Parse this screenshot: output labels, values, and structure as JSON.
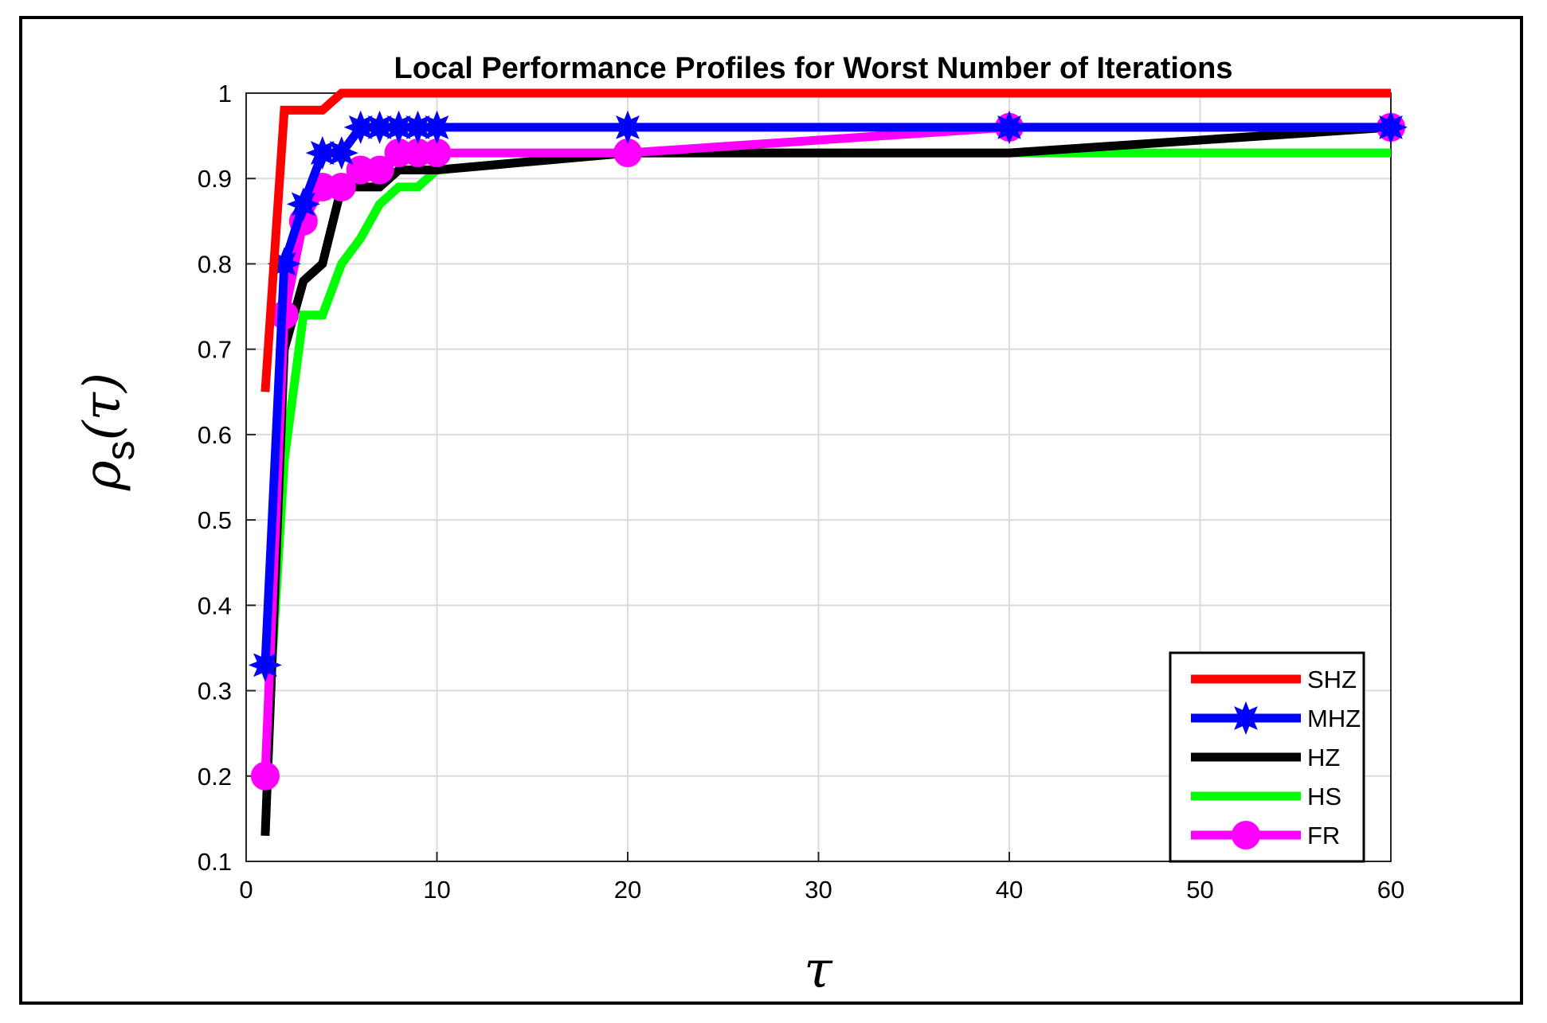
{
  "chart_data": {
    "type": "line",
    "title": "Local Performance Profiles for Worst Number of Iterations",
    "xlabel": "τ",
    "ylabel": "ρs(τ)",
    "ylabel_main": "ρ",
    "ylabel_sub": "s",
    "ylabel_arg": "(τ)",
    "xlim": [
      0,
      60
    ],
    "ylim": [
      0.1,
      1.0
    ],
    "xticks": [
      0,
      10,
      20,
      30,
      40,
      50,
      60
    ],
    "yticks": [
      0.1,
      0.2,
      0.3,
      0.4,
      0.5,
      0.6,
      0.7,
      0.8,
      0.9,
      1
    ],
    "grid": true,
    "legend_position": "bottom-right",
    "series": [
      {
        "name": "SHZ",
        "color": "#ff0000",
        "marker": "none",
        "x": [
          1,
          2,
          3,
          4,
          5,
          60
        ],
        "y": [
          0.65,
          0.98,
          0.98,
          0.98,
          1.0,
          1.0
        ]
      },
      {
        "name": "MHZ",
        "color": "#0000ff",
        "marker": "star",
        "x": [
          1,
          2,
          3,
          4,
          5,
          6,
          7,
          8,
          9,
          10,
          20,
          40,
          60
        ],
        "y": [
          0.33,
          0.8,
          0.87,
          0.93,
          0.93,
          0.96,
          0.96,
          0.96,
          0.96,
          0.96,
          0.96,
          0.96,
          0.96
        ]
      },
      {
        "name": "HZ",
        "color": "#000000",
        "marker": "none",
        "x": [
          1,
          2,
          3,
          4,
          5,
          6,
          7,
          8,
          9,
          10,
          20,
          40,
          60
        ],
        "y": [
          0.13,
          0.7,
          0.78,
          0.8,
          0.89,
          0.89,
          0.89,
          0.91,
          0.91,
          0.91,
          0.93,
          0.93,
          0.96
        ]
      },
      {
        "name": "HS",
        "color": "#00ff00",
        "marker": "none",
        "x": [
          1,
          2,
          3,
          4,
          5,
          6,
          7,
          8,
          9,
          10,
          20,
          40,
          60
        ],
        "y": [
          0.2,
          0.57,
          0.74,
          0.74,
          0.8,
          0.83,
          0.87,
          0.89,
          0.89,
          0.91,
          0.93,
          0.93,
          0.93
        ]
      },
      {
        "name": "FR",
        "color": "#ff00ff",
        "marker": "circle",
        "x": [
          1,
          2,
          3,
          4,
          5,
          6,
          7,
          8,
          9,
          10,
          20,
          40,
          60
        ],
        "y": [
          0.2,
          0.74,
          0.85,
          0.89,
          0.89,
          0.91,
          0.91,
          0.93,
          0.93,
          0.93,
          0.93,
          0.96,
          0.96
        ]
      }
    ]
  }
}
